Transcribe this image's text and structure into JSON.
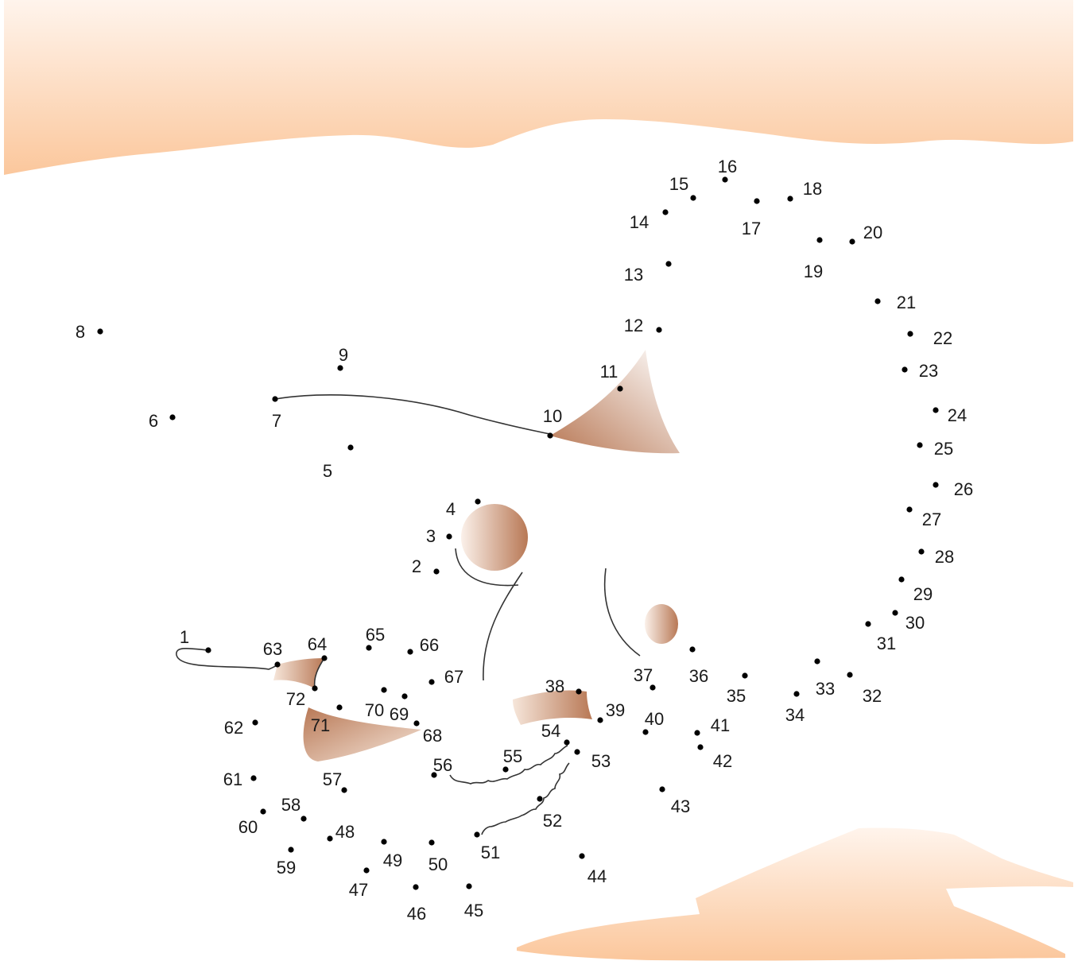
{
  "colors": {
    "sand_light": "#fde3cf",
    "sand": "#fbc79c",
    "shade_dark": "#b87855",
    "shade_light": "#f3e3d8",
    "dot": "#000000",
    "text": "#1a1a1a"
  },
  "puzzle": {
    "dot_count": 72,
    "labels": [
      "1",
      "2",
      "3",
      "4",
      "5",
      "6",
      "7",
      "8",
      "9",
      "10",
      "11",
      "12",
      "13",
      "14",
      "15",
      "16",
      "17",
      "18",
      "19",
      "20",
      "21",
      "22",
      "23",
      "24",
      "25",
      "26",
      "27",
      "28",
      "29",
      "30",
      "31",
      "32",
      "33",
      "34",
      "35",
      "36",
      "37",
      "38",
      "39",
      "40",
      "41",
      "42",
      "43",
      "44",
      "45",
      "46",
      "47",
      "48",
      "49",
      "50",
      "51",
      "52",
      "53",
      "54",
      "55",
      "56",
      "57",
      "58",
      "59",
      "60",
      "61",
      "62",
      "63",
      "64",
      "65",
      "66",
      "67",
      "68",
      "69",
      "70",
      "71",
      "72"
    ]
  }
}
